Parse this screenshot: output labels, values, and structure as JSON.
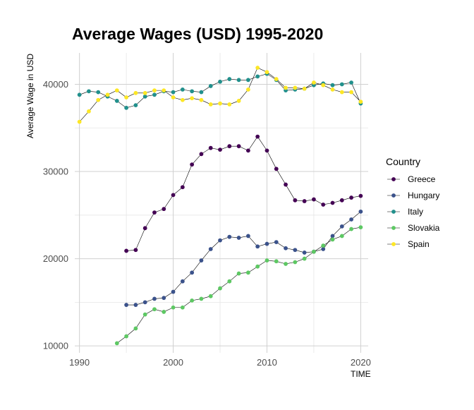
{
  "chart_data": {
    "type": "line",
    "title": "Average Wages (USD) 1995-2020",
    "xlabel": "TIME",
    "ylabel": "Average Wage in USD",
    "xlim": [
      1989.5,
      2020.8
    ],
    "ylim": [
      9200,
      43600
    ],
    "x_ticks": [
      1990,
      2000,
      2010,
      2020
    ],
    "y_ticks": [
      10000,
      20000,
      30000,
      40000
    ],
    "x_tick_labels": [
      "1990",
      "2000",
      "2010",
      "2020"
    ],
    "y_tick_labels": [
      "10000",
      "20000",
      "30000",
      "40000"
    ],
    "grid": true,
    "legend": {
      "title": "Country",
      "position": "right"
    },
    "series": [
      {
        "name": "Greece",
        "color": "#440154",
        "x": [
          1995,
          1996,
          1997,
          1998,
          1999,
          2000,
          2001,
          2002,
          2003,
          2004,
          2005,
          2006,
          2007,
          2008,
          2009,
          2010,
          2011,
          2012,
          2013,
          2014,
          2015,
          2016,
          2017,
          2018,
          2019,
          2020
        ],
        "values": [
          20900,
          21000,
          23500,
          25300,
          25700,
          27300,
          28200,
          30800,
          32000,
          32700,
          32500,
          32900,
          32900,
          32400,
          34000,
          32400,
          30300,
          28500,
          26700,
          26600,
          26800,
          26200,
          26400,
          26700,
          27000,
          27200
        ]
      },
      {
        "name": "Hungary",
        "color": "#3b528b",
        "x": [
          1995,
          1996,
          1997,
          1998,
          1999,
          2000,
          2001,
          2002,
          2003,
          2004,
          2005,
          2006,
          2007,
          2008,
          2009,
          2010,
          2011,
          2012,
          2013,
          2014,
          2015,
          2016,
          2017,
          2018,
          2019,
          2020
        ],
        "values": [
          14700,
          14700,
          15000,
          15400,
          15500,
          16200,
          17400,
          18400,
          19800,
          21100,
          22100,
          22500,
          22400,
          22600,
          21400,
          21700,
          21900,
          21200,
          21000,
          20700,
          20800,
          21100,
          22600,
          23700,
          24500,
          25400
        ]
      },
      {
        "name": "Italy",
        "color": "#21908c",
        "x": [
          1990,
          1991,
          1992,
          1993,
          1994,
          1995,
          1996,
          1997,
          1998,
          1999,
          2000,
          2001,
          2002,
          2003,
          2004,
          2005,
          2006,
          2007,
          2008,
          2009,
          2010,
          2011,
          2012,
          2013,
          2014,
          2015,
          2016,
          2017,
          2018,
          2019,
          2020
        ],
        "values": [
          38800,
          39200,
          39100,
          38600,
          38100,
          37300,
          37600,
          38600,
          38800,
          39200,
          39100,
          39400,
          39200,
          39100,
          39800,
          40300,
          40600,
          40500,
          40500,
          40900,
          41200,
          40500,
          39300,
          39400,
          39500,
          39900,
          40100,
          39900,
          40000,
          40200,
          37800
        ]
      },
      {
        "name": "Slovakia",
        "color": "#5dc863",
        "x": [
          1994,
          1995,
          1996,
          1997,
          1998,
          1999,
          2000,
          2001,
          2002,
          2003,
          2004,
          2005,
          2006,
          2007,
          2008,
          2009,
          2010,
          2011,
          2012,
          2013,
          2014,
          2015,
          2016,
          2017,
          2018,
          2019,
          2020
        ],
        "values": [
          10300,
          11100,
          12000,
          13600,
          14200,
          13900,
          14400,
          14400,
          15200,
          15400,
          15700,
          16600,
          17400,
          18300,
          18400,
          19100,
          19800,
          19700,
          19400,
          19600,
          20000,
          20800,
          21500,
          22200,
          22600,
          23400,
          23600
        ]
      },
      {
        "name": "Spain",
        "color": "#fde725",
        "x": [
          1990,
          1991,
          1992,
          1993,
          1994,
          1995,
          1996,
          1997,
          1998,
          1999,
          2000,
          2001,
          2002,
          2003,
          2004,
          2005,
          2006,
          2007,
          2008,
          2009,
          2010,
          2011,
          2012,
          2013,
          2014,
          2015,
          2016,
          2017,
          2018,
          2019,
          2020
        ],
        "values": [
          35700,
          36900,
          38200,
          38800,
          39300,
          38500,
          39000,
          39000,
          39300,
          39300,
          38500,
          38200,
          38400,
          38200,
          37700,
          37800,
          37700,
          38100,
          39400,
          41900,
          41400,
          40600,
          39600,
          39600,
          39500,
          40200,
          39900,
          39400,
          39100,
          39100,
          38000
        ]
      }
    ]
  }
}
